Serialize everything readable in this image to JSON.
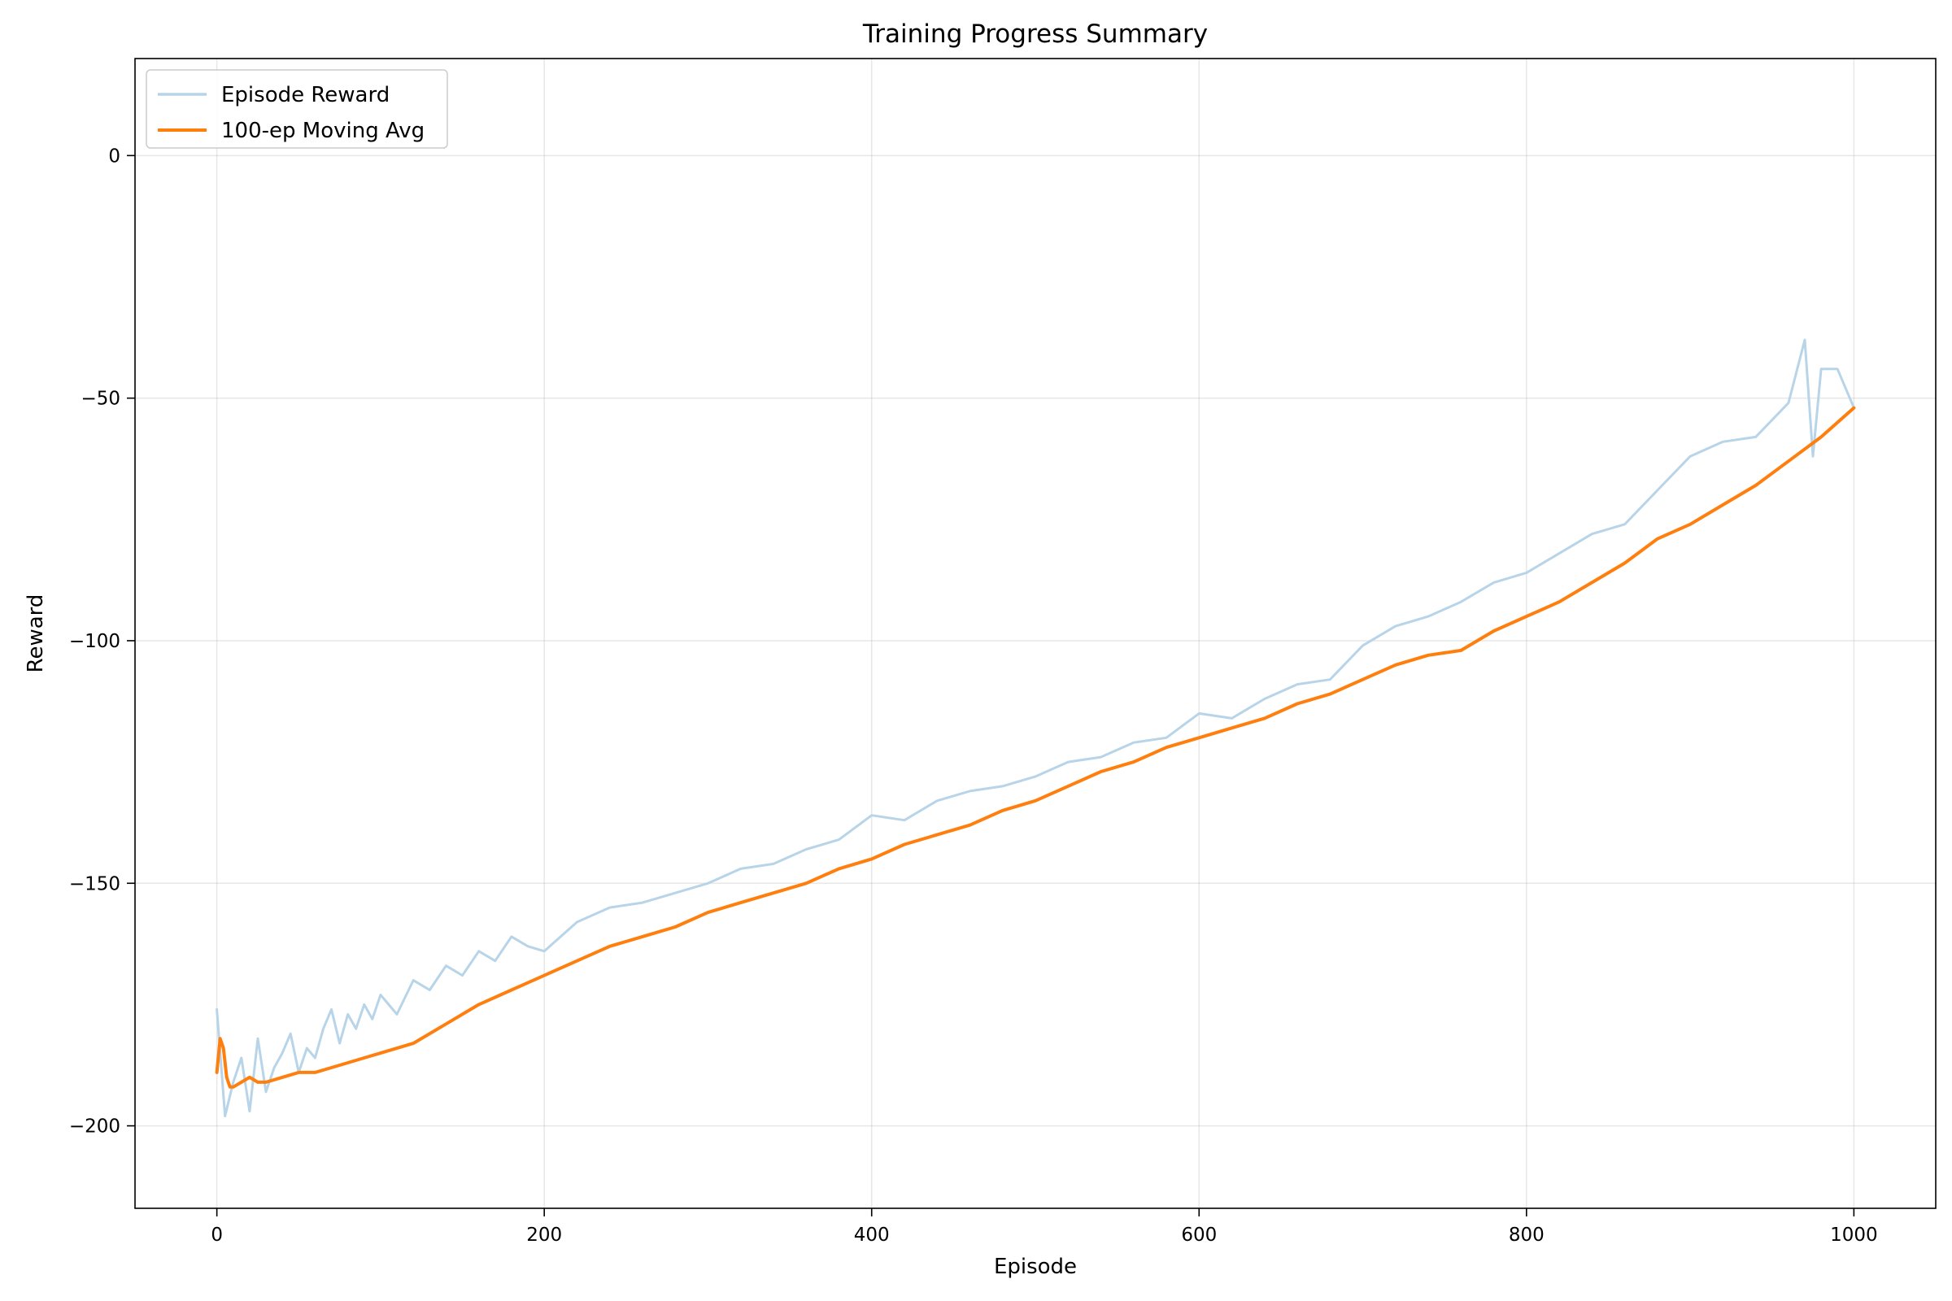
{
  "chart_data": {
    "type": "line",
    "title": "Training Progress Summary",
    "xlabel": "Episode",
    "ylabel": "Reward",
    "xlim": [
      -50,
      1050
    ],
    "ylim": [
      -217,
      20
    ],
    "xticks": [
      0,
      200,
      400,
      600,
      800,
      1000
    ],
    "xtick_labels": [
      "0",
      "200",
      "400",
      "600",
      "800",
      "1000"
    ],
    "yticks": [
      0,
      -50,
      -100,
      -150,
      -200
    ],
    "ytick_labels": [
      "0",
      "−50",
      "−100",
      "−150",
      "−200"
    ],
    "grid": true,
    "legend_position": "top-left",
    "series": [
      {
        "name": "Episode Reward",
        "color": "#b8d4e8",
        "x": [
          0,
          5,
          10,
          15,
          20,
          25,
          30,
          35,
          40,
          45,
          50,
          55,
          60,
          65,
          70,
          75,
          80,
          85,
          90,
          95,
          100,
          110,
          120,
          130,
          140,
          150,
          160,
          170,
          180,
          190,
          200,
          220,
          240,
          260,
          280,
          300,
          320,
          340,
          360,
          380,
          400,
          420,
          440,
          460,
          480,
          500,
          520,
          540,
          560,
          580,
          600,
          620,
          640,
          660,
          680,
          700,
          720,
          740,
          760,
          780,
          800,
          820,
          840,
          860,
          880,
          900,
          920,
          940,
          960,
          970,
          975,
          980,
          990,
          1000
        ],
        "y": [
          -176,
          -198,
          -191,
          -186,
          -197,
          -182,
          -193,
          -188,
          -185,
          -181,
          -189,
          -184,
          -186,
          -180,
          -176,
          -183,
          -177,
          -180,
          -175,
          -178,
          -173,
          -177,
          -170,
          -172,
          -167,
          -169,
          -164,
          -166,
          -161,
          -163,
          -164,
          -158,
          -155,
          -154,
          -152,
          -150,
          -147,
          -146,
          -143,
          -141,
          -136,
          -137,
          -133,
          -131,
          -130,
          -128,
          -125,
          -124,
          -121,
          -120,
          -115,
          -116,
          -112,
          -109,
          -108,
          -101,
          -97,
          -95,
          -92,
          -88,
          -86,
          -82,
          -78,
          -76,
          -69,
          -62,
          -59,
          -58,
          -51,
          -38,
          -62,
          -44,
          -44,
          -52
        ]
      },
      {
        "name": "100-ep Moving Avg",
        "color": "#ff7f0e",
        "x": [
          0,
          2,
          4,
          6,
          8,
          10,
          15,
          20,
          25,
          30,
          40,
          50,
          60,
          70,
          80,
          90,
          100,
          120,
          140,
          160,
          180,
          200,
          220,
          240,
          260,
          280,
          300,
          320,
          340,
          360,
          380,
          400,
          420,
          440,
          460,
          480,
          500,
          520,
          540,
          560,
          580,
          600,
          620,
          640,
          660,
          680,
          700,
          720,
          740,
          760,
          780,
          800,
          820,
          840,
          860,
          880,
          900,
          920,
          940,
          960,
          980,
          1000
        ],
        "y": [
          -189,
          -182,
          -184,
          -190,
          -192,
          -192,
          -191,
          -190,
          -191,
          -191,
          -190,
          -189,
          -189,
          -188,
          -187,
          -186,
          -185,
          -183,
          -179,
          -175,
          -172,
          -169,
          -166,
          -163,
          -161,
          -159,
          -156,
          -154,
          -152,
          -150,
          -147,
          -145,
          -142,
          -140,
          -138,
          -135,
          -133,
          -130,
          -127,
          -125,
          -122,
          -120,
          -118,
          -116,
          -113,
          -111,
          -108,
          -105,
          -103,
          -102,
          -98,
          -95,
          -92,
          -88,
          -84,
          -79,
          -76,
          -72,
          -68,
          -63,
          -58,
          -52
        ]
      }
    ]
  }
}
